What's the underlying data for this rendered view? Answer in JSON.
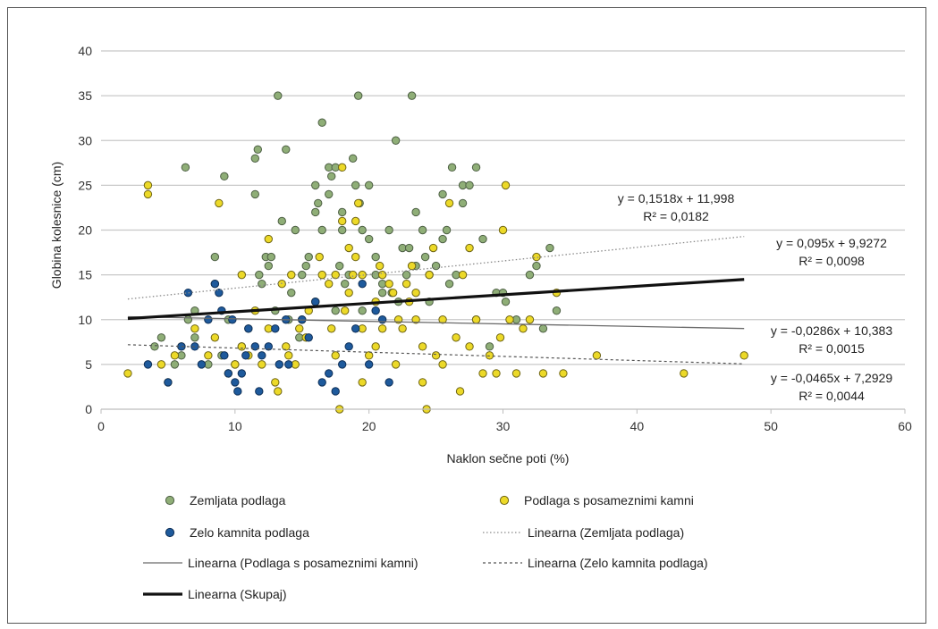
{
  "chart_data": {
    "type": "scatter",
    "xlabel": "Naklon sečne poti (%)",
    "ylabel": "Globina kolesnice (cm)",
    "xlim": [
      0,
      60
    ],
    "ylim": [
      0,
      40
    ],
    "xticks": [
      "0",
      "10",
      "20",
      "30",
      "40",
      "50",
      "60"
    ],
    "yticks": [
      "0",
      "5",
      "10",
      "15",
      "20",
      "25",
      "30",
      "35",
      "40"
    ],
    "grid": "horizontal",
    "legend_position": "bottom",
    "series": [
      {
        "name": "Zemljata podlaga",
        "kind": "scatter",
        "color": "#8fae77",
        "stroke": "#4d5f44",
        "points": [
          [
            4,
            7
          ],
          [
            4.5,
            8
          ],
          [
            5.5,
            5
          ],
          [
            6,
            6
          ],
          [
            6.3,
            27
          ],
          [
            6.5,
            10
          ],
          [
            7,
            11
          ],
          [
            7,
            8
          ],
          [
            8,
            5
          ],
          [
            8.5,
            17
          ],
          [
            8.5,
            14
          ],
          [
            9,
            6
          ],
          [
            9.2,
            26
          ],
          [
            9.5,
            10
          ],
          [
            10,
            5
          ],
          [
            10.5,
            7
          ],
          [
            11,
            9
          ],
          [
            11.5,
            28
          ],
          [
            11.7,
            29
          ],
          [
            11.5,
            24
          ],
          [
            11.8,
            15
          ],
          [
            12,
            14
          ],
          [
            12.5,
            16
          ],
          [
            12.3,
            17
          ],
          [
            12.7,
            17
          ],
          [
            13,
            11
          ],
          [
            13.2,
            35
          ],
          [
            13.5,
            21
          ],
          [
            13.8,
            29
          ],
          [
            14,
            10
          ],
          [
            14.2,
            13
          ],
          [
            14.5,
            20
          ],
          [
            14.8,
            8
          ],
          [
            15,
            15
          ],
          [
            15.3,
            16
          ],
          [
            15.5,
            17
          ],
          [
            16,
            25
          ],
          [
            16,
            22
          ],
          [
            16.2,
            23
          ],
          [
            16.5,
            32
          ],
          [
            16.5,
            20
          ],
          [
            17,
            24
          ],
          [
            17,
            27
          ],
          [
            17.2,
            26
          ],
          [
            17.5,
            27
          ],
          [
            17.5,
            11
          ],
          [
            17.8,
            16
          ],
          [
            18,
            20
          ],
          [
            18,
            22
          ],
          [
            18.2,
            14
          ],
          [
            18.5,
            15
          ],
          [
            18.8,
            28
          ],
          [
            19,
            25
          ],
          [
            19.2,
            35
          ],
          [
            19.3,
            23
          ],
          [
            19.5,
            11
          ],
          [
            19.5,
            20
          ],
          [
            20,
            19
          ],
          [
            20,
            25
          ],
          [
            20.5,
            15
          ],
          [
            20.5,
            17
          ],
          [
            21,
            13
          ],
          [
            21,
            14
          ],
          [
            21.5,
            20
          ],
          [
            21.7,
            13
          ],
          [
            22,
            30
          ],
          [
            22.2,
            12
          ],
          [
            22.5,
            18
          ],
          [
            22.8,
            15
          ],
          [
            23,
            18
          ],
          [
            23.2,
            35
          ],
          [
            23.5,
            22
          ],
          [
            23.5,
            16
          ],
          [
            24,
            20
          ],
          [
            24.2,
            17
          ],
          [
            24.5,
            12
          ],
          [
            24.5,
            15
          ],
          [
            25,
            16
          ],
          [
            25.5,
            19
          ],
          [
            25.5,
            24
          ],
          [
            25.8,
            20
          ],
          [
            26,
            14
          ],
          [
            26.2,
            27
          ],
          [
            26.5,
            15
          ],
          [
            27,
            25
          ],
          [
            27,
            23
          ],
          [
            27.5,
            25
          ],
          [
            28,
            10
          ],
          [
            28,
            27
          ],
          [
            28.5,
            19
          ],
          [
            29,
            7
          ],
          [
            29.5,
            13
          ],
          [
            30,
            13
          ],
          [
            30.2,
            12
          ],
          [
            31,
            10
          ],
          [
            32,
            15
          ],
          [
            32.5,
            16
          ],
          [
            33,
            9
          ],
          [
            33.5,
            18
          ],
          [
            34,
            11
          ]
        ]
      },
      {
        "name": "Podlaga s posameznimi kamni",
        "kind": "scatter",
        "color": "#ecd928",
        "stroke": "#6e6414",
        "points": [
          [
            2,
            4
          ],
          [
            3.5,
            25
          ],
          [
            3.5,
            24
          ],
          [
            4.5,
            5
          ],
          [
            5,
            3
          ],
          [
            5.5,
            6
          ],
          [
            6,
            7
          ],
          [
            7,
            9
          ],
          [
            8,
            6
          ],
          [
            8.5,
            8
          ],
          [
            8.8,
            23
          ],
          [
            9.5,
            4
          ],
          [
            10,
            5
          ],
          [
            10.5,
            7
          ],
          [
            10.5,
            15
          ],
          [
            11,
            6
          ],
          [
            11.5,
            11
          ],
          [
            12,
            5
          ],
          [
            12.5,
            19
          ],
          [
            12.5,
            9
          ],
          [
            13,
            3
          ],
          [
            13.2,
            2
          ],
          [
            13.5,
            14
          ],
          [
            13.8,
            7
          ],
          [
            14,
            6
          ],
          [
            14.2,
            15
          ],
          [
            14.5,
            5
          ],
          [
            14.8,
            9
          ],
          [
            15,
            10
          ],
          [
            15.3,
            8
          ],
          [
            15.5,
            11
          ],
          [
            16,
            12
          ],
          [
            16.3,
            17
          ],
          [
            16.5,
            15
          ],
          [
            17,
            14
          ],
          [
            17.2,
            9
          ],
          [
            17.5,
            6
          ],
          [
            17.5,
            15
          ],
          [
            17.8,
            0
          ],
          [
            18,
            21
          ],
          [
            18,
            27
          ],
          [
            18.2,
            11
          ],
          [
            18.5,
            18
          ],
          [
            18.5,
            13
          ],
          [
            18.8,
            15
          ],
          [
            19,
            17
          ],
          [
            19,
            21
          ],
          [
            19.2,
            23
          ],
          [
            19.5,
            3
          ],
          [
            19.5,
            9
          ],
          [
            19.5,
            15
          ],
          [
            20,
            6
          ],
          [
            20.5,
            7
          ],
          [
            20.5,
            12
          ],
          [
            20.8,
            16
          ],
          [
            21,
            9
          ],
          [
            21,
            15
          ],
          [
            21.5,
            14
          ],
          [
            21.8,
            13
          ],
          [
            22,
            5
          ],
          [
            22.2,
            10
          ],
          [
            22.5,
            9
          ],
          [
            22.8,
            14
          ],
          [
            23,
            12
          ],
          [
            23.2,
            16
          ],
          [
            23.5,
            10
          ],
          [
            23.5,
            13
          ],
          [
            24,
            3
          ],
          [
            24,
            7
          ],
          [
            24.3,
            0
          ],
          [
            24.5,
            15
          ],
          [
            24.8,
            18
          ],
          [
            25,
            6
          ],
          [
            25.5,
            5
          ],
          [
            25.5,
            10
          ],
          [
            26,
            23
          ],
          [
            26.5,
            8
          ],
          [
            26.8,
            2
          ],
          [
            27,
            15
          ],
          [
            27.5,
            18
          ],
          [
            27.5,
            7
          ],
          [
            28,
            10
          ],
          [
            28.5,
            4
          ],
          [
            29,
            6
          ],
          [
            29.5,
            4
          ],
          [
            29.8,
            8
          ],
          [
            30,
            20
          ],
          [
            30.2,
            25
          ],
          [
            30.5,
            10
          ],
          [
            31,
            4
          ],
          [
            31.5,
            9
          ],
          [
            32,
            10
          ],
          [
            32.5,
            17
          ],
          [
            33,
            4
          ],
          [
            34,
            13
          ],
          [
            34.5,
            4
          ],
          [
            37,
            6
          ],
          [
            43.5,
            4
          ],
          [
            48,
            6
          ]
        ]
      },
      {
        "name": "Zelo kamnita podlaga",
        "kind": "scatter",
        "color": "#1e5a9c",
        "stroke": "#0e2f57",
        "points": [
          [
            3.5,
            5
          ],
          [
            5,
            3
          ],
          [
            6,
            7
          ],
          [
            6.5,
            13
          ],
          [
            7,
            7
          ],
          [
            7.5,
            5
          ],
          [
            8,
            10
          ],
          [
            8.5,
            14
          ],
          [
            8.8,
            13
          ],
          [
            9,
            11
          ],
          [
            9.2,
            6
          ],
          [
            9.5,
            4
          ],
          [
            9.8,
            10
          ],
          [
            10,
            3
          ],
          [
            10.2,
            2
          ],
          [
            10.5,
            4
          ],
          [
            10.8,
            6
          ],
          [
            11,
            9
          ],
          [
            11.5,
            7
          ],
          [
            11.8,
            2
          ],
          [
            12,
            6
          ],
          [
            12.5,
            7
          ],
          [
            13,
            9
          ],
          [
            13.3,
            5
          ],
          [
            13.8,
            10
          ],
          [
            14,
            5
          ],
          [
            15,
            10
          ],
          [
            15.5,
            8
          ],
          [
            16,
            12
          ],
          [
            16.5,
            3
          ],
          [
            17,
            4
          ],
          [
            17.5,
            2
          ],
          [
            18,
            5
          ],
          [
            18.5,
            7
          ],
          [
            19,
            9
          ],
          [
            19.5,
            14
          ],
          [
            20,
            5
          ],
          [
            20.5,
            11
          ],
          [
            21,
            10
          ],
          [
            21.5,
            3
          ]
        ]
      }
    ],
    "trendlines": [
      {
        "name": "Linearna (Zemljata podlaga)",
        "x_range": [
          2,
          48
        ],
        "slope": 0.1518,
        "intercept": 11.998,
        "style": "dotted-gray",
        "equation": "y = 0,1518x + 11,998",
        "r2": "R² = 0,0182"
      },
      {
        "name": "Linearna (Podlaga s posameznimi kamni)",
        "x_range": [
          2,
          48
        ],
        "slope": -0.0286,
        "intercept": 10.383,
        "style": "solid-thin-gray",
        "equation": "y = -0,0286x + 10,383",
        "r2": "R² = 0,0015"
      },
      {
        "name": "Linearna (Zelo kamnita podlaga)",
        "x_range": [
          2,
          48
        ],
        "slope": -0.0465,
        "intercept": 7.2929,
        "style": "dashed-thin",
        "equation": "y = -0,0465x + 7,2929",
        "r2": "R² = 0,0044"
      },
      {
        "name": "Linearna (Skupaj)",
        "x_range": [
          2,
          48
        ],
        "slope": 0.095,
        "intercept": 9.9272,
        "style": "solid-thick-black",
        "equation": "y = 0,095x + 9,9272",
        "r2": "R² = 0,0098"
      }
    ]
  }
}
